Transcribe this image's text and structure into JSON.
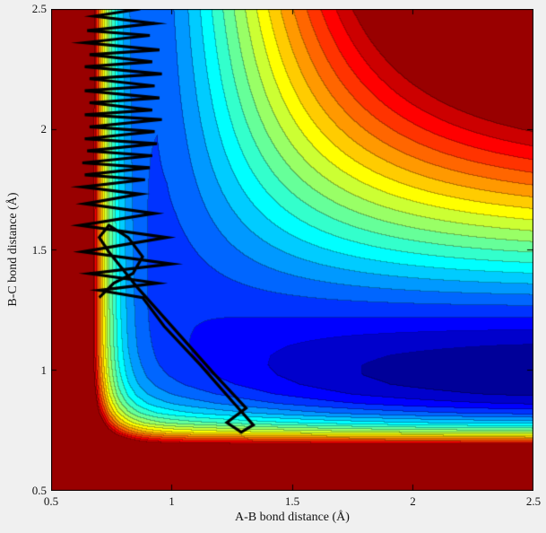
{
  "figure": {
    "background": "#f0f0f0",
    "axis_color": "#000000"
  },
  "chart_data": {
    "type": "contour",
    "title": "",
    "xlabel": "A-B bond distance (Å)",
    "ylabel": "B-C bond distance (Å)",
    "xlim": [
      0.5,
      2.5
    ],
    "ylim": [
      0.5,
      2.5
    ],
    "xticks": [
      0.5,
      1,
      1.5,
      2,
      2.5
    ],
    "xtick_labels": [
      "0.5",
      "1",
      "1.5",
      "2",
      "2.5"
    ],
    "yticks": [
      0.5,
      1,
      1.5,
      2,
      2.5
    ],
    "ytick_labels": [
      "0.5",
      "1",
      "1.5",
      "2",
      "2.5"
    ],
    "colormap": "jet",
    "n_levels": 20,
    "legend": "none",
    "surface": {
      "description": "Filled-contour potential energy surface for collinear A-B-C reaction; deep (dark blue) product valley along rBC ≈ 0.9 at large rAB, higher (cyan) reactant channel along rAB ≈ 0.8 at large rBC, steep repulsive walls (dark red) at small bond distances, high dissociation plateau (dark red) in the upper-right corner",
      "model": "V(x,y) = -D1*mx*(1-my) - D2*my + eps*mx*my + A1*exp(-k1*(x-0.5)) + A2*exp(-k2*(y-0.5));  m(r;b,r0) = max(2*exp(-b*(r-r0)) - exp(-2*b*(r-r0)), 0)",
      "params": {
        "D1": 4.3,
        "D2": 4.8,
        "eps": 0.6,
        "r01": 0.8,
        "b1": 1.7,
        "r02": 0.9,
        "b2": 1.35,
        "A1": 16,
        "k1": 12,
        "A2": 14,
        "k2": 10
      },
      "contour_range_above_min": 2.5
    },
    "trajectory": {
      "color": "#000000",
      "line_width": 3.2,
      "points": [
        [
          0.87,
          2.5
        ],
        [
          0.68,
          2.47
        ],
        [
          0.93,
          2.44
        ],
        [
          0.65,
          2.41
        ],
        [
          0.91,
          2.39
        ],
        [
          0.64,
          2.36
        ],
        [
          0.95,
          2.33
        ],
        [
          0.66,
          2.31
        ],
        [
          0.92,
          2.28
        ],
        [
          0.64,
          2.26
        ],
        [
          0.96,
          2.23
        ],
        [
          0.66,
          2.21
        ],
        [
          0.93,
          2.18
        ],
        [
          0.64,
          2.16
        ],
        [
          0.95,
          2.13
        ],
        [
          0.66,
          2.11
        ],
        [
          0.92,
          2.08
        ],
        [
          0.64,
          2.06
        ],
        [
          0.96,
          2.04
        ],
        [
          0.66,
          2.01
        ],
        [
          0.93,
          1.99
        ],
        [
          0.64,
          1.96
        ],
        [
          0.94,
          1.94
        ],
        [
          0.65,
          1.91
        ],
        [
          0.92,
          1.89
        ],
        [
          0.63,
          1.86
        ],
        [
          0.91,
          1.84
        ],
        [
          0.64,
          1.81
        ],
        [
          0.89,
          1.79
        ],
        [
          0.63,
          1.76
        ],
        [
          0.87,
          1.73
        ],
        [
          0.64,
          1.69
        ],
        [
          0.93,
          1.65
        ],
        [
          0.62,
          1.6
        ],
        [
          0.98,
          1.55
        ],
        [
          0.63,
          1.49
        ],
        [
          1.0,
          1.44
        ],
        [
          0.66,
          1.4
        ],
        [
          0.94,
          1.36
        ],
        [
          0.7,
          1.33
        ],
        [
          0.88,
          1.3
        ],
        [
          0.97,
          1.18
        ],
        [
          1.12,
          1.02
        ],
        [
          1.26,
          0.86
        ],
        [
          1.34,
          0.77
        ],
        [
          1.29,
          0.74
        ],
        [
          1.23,
          0.78
        ],
        [
          1.31,
          0.84
        ],
        [
          1.18,
          0.98
        ],
        [
          1.02,
          1.16
        ],
        [
          0.86,
          1.34
        ],
        [
          0.74,
          1.49
        ],
        [
          0.7,
          1.55
        ],
        [
          0.74,
          1.6
        ],
        [
          0.82,
          1.55
        ],
        [
          0.88,
          1.47
        ],
        [
          0.84,
          1.4
        ],
        [
          0.76,
          1.36
        ],
        [
          0.7,
          1.3
        ]
      ]
    }
  }
}
